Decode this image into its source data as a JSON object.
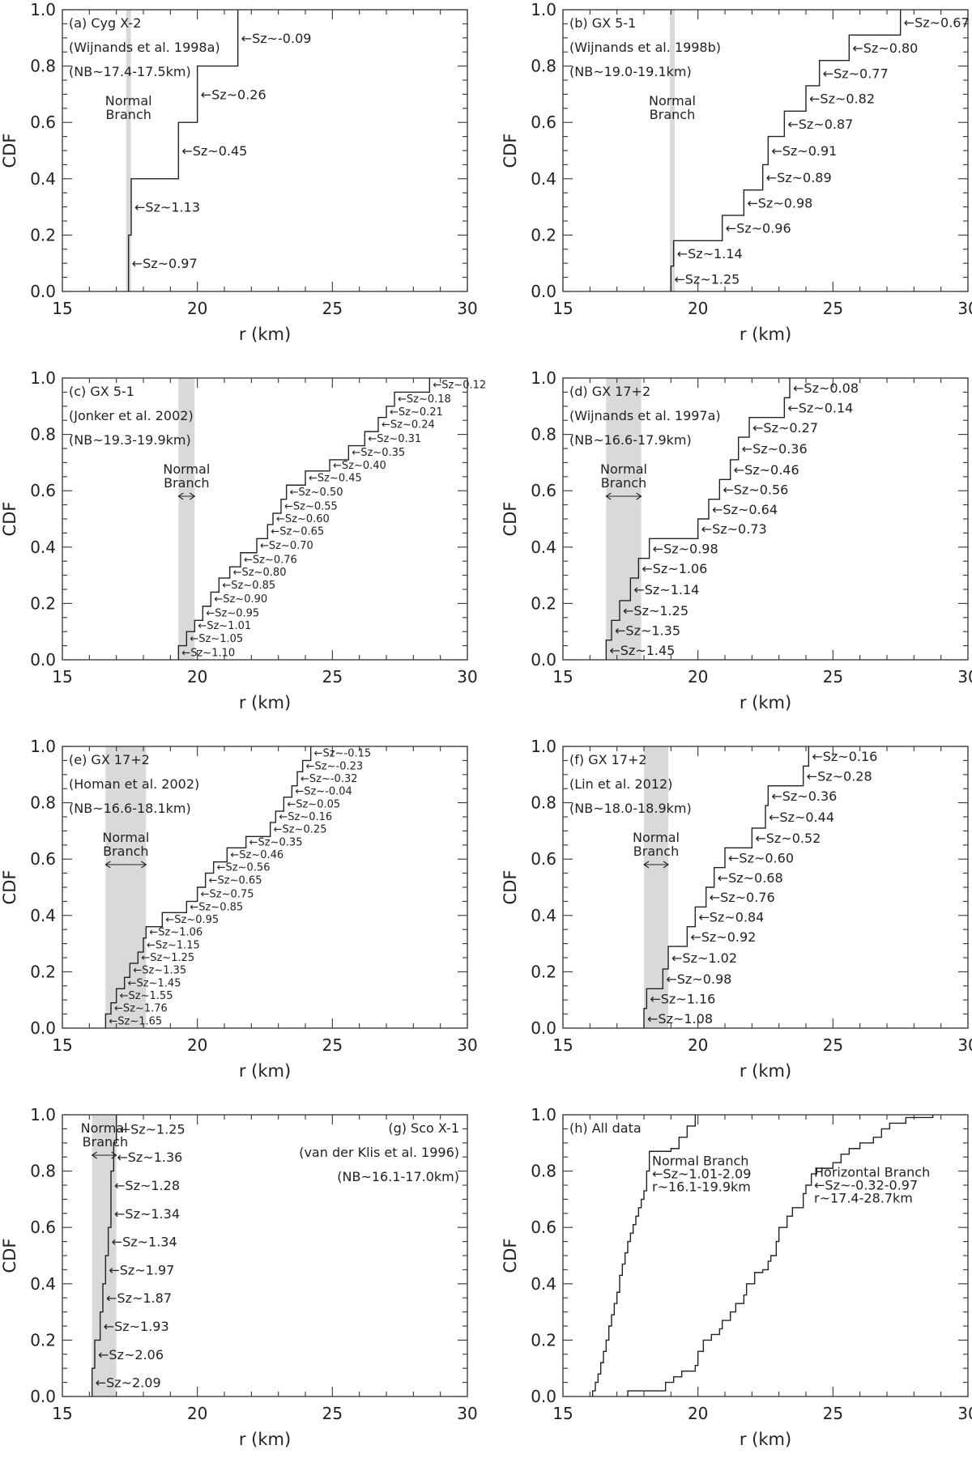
{
  "chart_data": [
    {
      "id": "a",
      "type": "line",
      "title": "(a) Cyg X-2",
      "reference": "(Wijnands et al. 1998a)",
      "nb_range_label": "(NB~17.4-17.5km)",
      "band_label": [
        "Normal",
        "Branch"
      ],
      "band": [
        17.4,
        17.5
      ],
      "band_arrow": false,
      "xlabel": "r (km)",
      "ylabel": "CDF",
      "xlim": [
        15,
        30
      ],
      "ylim": [
        0,
        1
      ],
      "xticks": [
        15,
        20,
        25,
        30
      ],
      "yticks": [
        "0.0",
        "0.2",
        "0.4",
        "0.6",
        "0.8",
        "1.0"
      ],
      "steps": [
        {
          "r": 17.45,
          "cdf": 0.2,
          "sz": "Sz~0.97"
        },
        {
          "r": 17.55,
          "cdf": 0.4,
          "sz": "Sz~1.13"
        },
        {
          "r": 19.3,
          "cdf": 0.6,
          "sz": "Sz~0.45"
        },
        {
          "r": 20.0,
          "cdf": 0.8,
          "sz": "Sz~0.26"
        },
        {
          "r": 21.5,
          "cdf": 1.0,
          "sz": "Sz~-0.09"
        }
      ]
    },
    {
      "id": "b",
      "type": "line",
      "title": "(b) GX 5-1",
      "reference": "(Wijnands et al. 1998b)",
      "nb_range_label": "(NB~19.0-19.1km)",
      "band_label": [
        "Normal",
        "Branch"
      ],
      "band": [
        19.0,
        19.1
      ],
      "band_arrow": false,
      "xlabel": "r (km)",
      "ylabel": "CDF",
      "xlim": [
        15,
        30
      ],
      "ylim": [
        0,
        1
      ],
      "xticks": [
        15,
        20,
        25,
        30
      ],
      "yticks": [
        "0.0",
        "0.2",
        "0.4",
        "0.6",
        "0.8",
        "1.0"
      ],
      "steps": [
        {
          "r": 19.0,
          "cdf": 0.09,
          "sz": "Sz~1.25"
        },
        {
          "r": 19.1,
          "cdf": 0.18,
          "sz": "Sz~1.14"
        },
        {
          "r": 20.9,
          "cdf": 0.27,
          "sz": "Sz~0.96"
        },
        {
          "r": 21.7,
          "cdf": 0.36,
          "sz": "Sz~0.98"
        },
        {
          "r": 22.4,
          "cdf": 0.45,
          "sz": "Sz~0.89"
        },
        {
          "r": 22.6,
          "cdf": 0.55,
          "sz": "Sz~0.91"
        },
        {
          "r": 23.2,
          "cdf": 0.64,
          "sz": "Sz~0.87"
        },
        {
          "r": 24.0,
          "cdf": 0.73,
          "sz": "Sz~0.82"
        },
        {
          "r": 24.5,
          "cdf": 0.82,
          "sz": "Sz~0.77"
        },
        {
          "r": 25.6,
          "cdf": 0.91,
          "sz": "Sz~0.80"
        },
        {
          "r": 27.5,
          "cdf": 1.0,
          "sz": "Sz~0.67"
        }
      ]
    },
    {
      "id": "c",
      "type": "line",
      "title": "(c) GX 5-1",
      "reference": "(Jonker et al. 2002)",
      "nb_range_label": "(NB~19.3-19.9km)",
      "band_label": [
        "Normal",
        "Branch"
      ],
      "band": [
        19.3,
        19.9
      ],
      "band_arrow": true,
      "xlabel": "r (km)",
      "ylabel": "CDF",
      "xlim": [
        15,
        30
      ],
      "ylim": [
        0,
        1
      ],
      "xticks": [
        15,
        20,
        25,
        30
      ],
      "yticks": [
        "0.0",
        "0.2",
        "0.4",
        "0.6",
        "0.8",
        "1.0"
      ],
      "small_labels": true,
      "steps": [
        {
          "r": 19.3,
          "cdf": 0.05,
          "sz": "Sz~1.10"
        },
        {
          "r": 19.6,
          "cdf": 0.1,
          "sz": "Sz~1.05"
        },
        {
          "r": 19.9,
          "cdf": 0.14,
          "sz": "Sz~1.01"
        },
        {
          "r": 20.2,
          "cdf": 0.19,
          "sz": "Sz~0.95"
        },
        {
          "r": 20.5,
          "cdf": 0.24,
          "sz": "Sz~0.90"
        },
        {
          "r": 20.8,
          "cdf": 0.29,
          "sz": "Sz~0.85"
        },
        {
          "r": 21.2,
          "cdf": 0.33,
          "sz": "Sz~0.80"
        },
        {
          "r": 21.6,
          "cdf": 0.38,
          "sz": "Sz~0.76"
        },
        {
          "r": 22.2,
          "cdf": 0.43,
          "sz": "Sz~0.70"
        },
        {
          "r": 22.6,
          "cdf": 0.48,
          "sz": "Sz~0.65"
        },
        {
          "r": 22.8,
          "cdf": 0.52,
          "sz": "Sz~0.60"
        },
        {
          "r": 23.1,
          "cdf": 0.57,
          "sz": "Sz~0.55"
        },
        {
          "r": 23.3,
          "cdf": 0.62,
          "sz": "Sz~0.50"
        },
        {
          "r": 24.0,
          "cdf": 0.67,
          "sz": "Sz~0.45"
        },
        {
          "r": 24.9,
          "cdf": 0.71,
          "sz": "Sz~0.40"
        },
        {
          "r": 25.6,
          "cdf": 0.76,
          "sz": "Sz~0.35"
        },
        {
          "r": 26.2,
          "cdf": 0.81,
          "sz": "Sz~0.31"
        },
        {
          "r": 26.7,
          "cdf": 0.86,
          "sz": "Sz~0.24"
        },
        {
          "r": 27.0,
          "cdf": 0.9,
          "sz": "Sz~0.21"
        },
        {
          "r": 27.3,
          "cdf": 0.95,
          "sz": "Sz~0.18"
        },
        {
          "r": 28.6,
          "cdf": 1.0,
          "sz": "Sz~0.12"
        }
      ]
    },
    {
      "id": "d",
      "type": "line",
      "title": "(d) GX 17+2",
      "reference": "(Wijnands et al. 1997a)",
      "nb_range_label": "(NB~16.6-17.9km)",
      "band_label": [
        "Normal",
        "Branch"
      ],
      "band": [
        16.6,
        17.9
      ],
      "band_arrow": true,
      "xlabel": "r (km)",
      "ylabel": "CDF",
      "xlim": [
        15,
        30
      ],
      "ylim": [
        0,
        1
      ],
      "xticks": [
        15,
        20,
        25,
        30
      ],
      "yticks": [
        "0.0",
        "0.2",
        "0.4",
        "0.6",
        "0.8",
        "1.0"
      ],
      "steps": [
        {
          "r": 16.6,
          "cdf": 0.07,
          "sz": "Sz~1.45"
        },
        {
          "r": 16.8,
          "cdf": 0.14,
          "sz": "Sz~1.35"
        },
        {
          "r": 17.1,
          "cdf": 0.21,
          "sz": "Sz~1.25"
        },
        {
          "r": 17.5,
          "cdf": 0.29,
          "sz": "Sz~1.14"
        },
        {
          "r": 17.8,
          "cdf": 0.36,
          "sz": "Sz~1.06"
        },
        {
          "r": 18.2,
          "cdf": 0.43,
          "sz": "Sz~0.98"
        },
        {
          "r": 20.0,
          "cdf": 0.5,
          "sz": "Sz~0.73"
        },
        {
          "r": 20.4,
          "cdf": 0.57,
          "sz": "Sz~0.64"
        },
        {
          "r": 20.8,
          "cdf": 0.64,
          "sz": "Sz~0.56"
        },
        {
          "r": 21.2,
          "cdf": 0.71,
          "sz": "Sz~0.46"
        },
        {
          "r": 21.5,
          "cdf": 0.79,
          "sz": "Sz~0.36"
        },
        {
          "r": 21.9,
          "cdf": 0.86,
          "sz": "Sz~0.27"
        },
        {
          "r": 23.2,
          "cdf": 0.93,
          "sz": "Sz~0.14"
        },
        {
          "r": 23.4,
          "cdf": 1.0,
          "sz": "Sz~0.08"
        }
      ]
    },
    {
      "id": "e",
      "type": "line",
      "title": "(e) GX 17+2",
      "reference": "(Homan et al. 2002)",
      "nb_range_label": "(NB~16.6-18.1km)",
      "band_label": [
        "Normal",
        "Branch"
      ],
      "band": [
        16.6,
        18.1
      ],
      "band_arrow": true,
      "xlabel": "r (km)",
      "ylabel": "CDF",
      "xlim": [
        15,
        30
      ],
      "ylim": [
        0,
        1
      ],
      "xticks": [
        15,
        20,
        25,
        30
      ],
      "yticks": [
        "0.0",
        "0.2",
        "0.4",
        "0.6",
        "0.8",
        "1.0"
      ],
      "small_labels": true,
      "steps": [
        {
          "r": 16.6,
          "cdf": 0.05,
          "sz": "Sz~1.65"
        },
        {
          "r": 16.8,
          "cdf": 0.09,
          "sz": "Sz~1.76"
        },
        {
          "r": 17.0,
          "cdf": 0.14,
          "sz": "Sz~1.55"
        },
        {
          "r": 17.3,
          "cdf": 0.18,
          "sz": "Sz~1.45"
        },
        {
          "r": 17.5,
          "cdf": 0.23,
          "sz": "Sz~1.35"
        },
        {
          "r": 17.8,
          "cdf": 0.27,
          "sz": "Sz~1.25"
        },
        {
          "r": 18.0,
          "cdf": 0.32,
          "sz": "Sz~1.15"
        },
        {
          "r": 18.1,
          "cdf": 0.36,
          "sz": "Sz~1.06"
        },
        {
          "r": 18.7,
          "cdf": 0.41,
          "sz": "Sz~0.95"
        },
        {
          "r": 19.6,
          "cdf": 0.45,
          "sz": "Sz~0.85"
        },
        {
          "r": 20.0,
          "cdf": 0.5,
          "sz": "Sz~0.75"
        },
        {
          "r": 20.3,
          "cdf": 0.55,
          "sz": "Sz~0.65"
        },
        {
          "r": 20.6,
          "cdf": 0.59,
          "sz": "Sz~0.56"
        },
        {
          "r": 21.1,
          "cdf": 0.64,
          "sz": "Sz~0.46"
        },
        {
          "r": 21.8,
          "cdf": 0.68,
          "sz": "Sz~0.35"
        },
        {
          "r": 22.7,
          "cdf": 0.73,
          "sz": "Sz~0.25"
        },
        {
          "r": 22.9,
          "cdf": 0.77,
          "sz": "Sz~0.16"
        },
        {
          "r": 23.2,
          "cdf": 0.82,
          "sz": "Sz~0.05"
        },
        {
          "r": 23.5,
          "cdf": 0.86,
          "sz": "Sz~-0.04"
        },
        {
          "r": 23.7,
          "cdf": 0.91,
          "sz": "Sz~-0.32"
        },
        {
          "r": 23.9,
          "cdf": 0.95,
          "sz": "Sz~-0.23"
        },
        {
          "r": 24.2,
          "cdf": 1.0,
          "sz": "Sz~-0.15"
        }
      ]
    },
    {
      "id": "f",
      "type": "line",
      "title": "(f) GX 17+2",
      "reference": "(Lin et al. 2012)",
      "nb_range_label": "(NB~18.0-18.9km)",
      "band_label": [
        "Normal",
        "Branch"
      ],
      "band": [
        18.0,
        18.9
      ],
      "band_arrow": true,
      "xlabel": "r (km)",
      "ylabel": "CDF",
      "xlim": [
        15,
        30
      ],
      "ylim": [
        0,
        1
      ],
      "xticks": [
        15,
        20,
        25,
        30
      ],
      "yticks": [
        "0.0",
        "0.2",
        "0.4",
        "0.6",
        "0.8",
        "1.0"
      ],
      "steps": [
        {
          "r": 18.0,
          "cdf": 0.07,
          "sz": "Sz~1.08"
        },
        {
          "r": 18.1,
          "cdf": 0.14,
          "sz": "Sz~1.16"
        },
        {
          "r": 18.7,
          "cdf": 0.21,
          "sz": "Sz~0.98"
        },
        {
          "r": 18.9,
          "cdf": 0.29,
          "sz": "Sz~1.02"
        },
        {
          "r": 19.6,
          "cdf": 0.36,
          "sz": "Sz~0.92"
        },
        {
          "r": 19.9,
          "cdf": 0.43,
          "sz": "Sz~0.84"
        },
        {
          "r": 20.3,
          "cdf": 0.5,
          "sz": "Sz~0.76"
        },
        {
          "r": 20.6,
          "cdf": 0.57,
          "sz": "Sz~0.68"
        },
        {
          "r": 21.0,
          "cdf": 0.64,
          "sz": "Sz~0.60"
        },
        {
          "r": 22.0,
          "cdf": 0.71,
          "sz": "Sz~0.52"
        },
        {
          "r": 22.5,
          "cdf": 0.79,
          "sz": "Sz~0.44"
        },
        {
          "r": 22.6,
          "cdf": 0.86,
          "sz": "Sz~0.36"
        },
        {
          "r": 23.9,
          "cdf": 0.93,
          "sz": "Sz~0.28"
        },
        {
          "r": 24.1,
          "cdf": 1.0,
          "sz": "Sz~0.16"
        }
      ]
    },
    {
      "id": "g",
      "type": "line",
      "title": "(g) Sco X-1",
      "reference": "(van der Klis et al. 1996)",
      "nb_range_label": "(NB~16.1-17.0km)",
      "band_label": [
        "Normal",
        "Branch"
      ],
      "band": [
        16.1,
        17.0
      ],
      "band_arrow": true,
      "text_align": "right",
      "xlabel": "r (km)",
      "ylabel": "CDF",
      "xlim": [
        15,
        30
      ],
      "ylim": [
        0,
        1
      ],
      "xticks": [
        15,
        20,
        25,
        30
      ],
      "yticks": [
        "0.0",
        "0.2",
        "0.4",
        "0.6",
        "0.8",
        "1.0"
      ],
      "steps": [
        {
          "r": 16.1,
          "cdf": 0.1,
          "sz": "Sz~2.09"
        },
        {
          "r": 16.2,
          "cdf": 0.2,
          "sz": "Sz~2.06"
        },
        {
          "r": 16.4,
          "cdf": 0.3,
          "sz": "Sz~1.93"
        },
        {
          "r": 16.5,
          "cdf": 0.4,
          "sz": "Sz~1.87"
        },
        {
          "r": 16.6,
          "cdf": 0.5,
          "sz": "Sz~1.97"
        },
        {
          "r": 16.7,
          "cdf": 0.6,
          "sz": "Sz~1.34"
        },
        {
          "r": 16.8,
          "cdf": 0.7,
          "sz": "Sz~1.34"
        },
        {
          "r": 16.8,
          "cdf": 0.8,
          "sz": "Sz~1.28"
        },
        {
          "r": 16.9,
          "cdf": 0.9,
          "sz": "Sz~1.36"
        },
        {
          "r": 17.0,
          "cdf": 1.0,
          "sz": "Sz~1.25"
        }
      ]
    },
    {
      "id": "h",
      "type": "line",
      "title": "(h) All data",
      "xlabel": "r (km)",
      "ylabel": "CDF",
      "xlim": [
        15,
        30
      ],
      "ylim": [
        0,
        1
      ],
      "xticks": [
        15,
        20,
        25,
        30
      ],
      "yticks": [
        "0.0",
        "0.2",
        "0.4",
        "0.6",
        "0.8",
        "1.0"
      ],
      "series": [
        {
          "name": "Normal Branch",
          "label_lines": [
            "Normal Branch",
            "Sz~1.01-2.09",
            "r~16.1-19.9km"
          ],
          "points": [
            [
              16.1,
              0.02
            ],
            [
              16.2,
              0.05
            ],
            [
              16.3,
              0.08
            ],
            [
              16.4,
              0.12
            ],
            [
              16.5,
              0.16
            ],
            [
              16.6,
              0.2
            ],
            [
              16.7,
              0.25
            ],
            [
              16.8,
              0.29
            ],
            [
              16.9,
              0.33
            ],
            [
              17.0,
              0.37
            ],
            [
              17.1,
              0.43
            ],
            [
              17.2,
              0.47
            ],
            [
              17.3,
              0.51
            ],
            [
              17.4,
              0.55
            ],
            [
              17.5,
              0.58
            ],
            [
              17.6,
              0.61
            ],
            [
              17.7,
              0.64
            ],
            [
              17.8,
              0.67
            ],
            [
              17.9,
              0.7
            ],
            [
              18.0,
              0.73
            ],
            [
              18.1,
              0.8
            ],
            [
              18.2,
              0.87
            ],
            [
              19.0,
              0.88
            ],
            [
              19.3,
              0.92
            ],
            [
              19.6,
              0.96
            ],
            [
              19.9,
              1.0
            ]
          ]
        },
        {
          "name": "Horizontal Branch",
          "label_lines": [
            "Horizontal Branch",
            "Sz~-0.32-0.97",
            "r~17.4-28.7km"
          ],
          "points": [
            [
              17.4,
              0.02
            ],
            [
              18.8,
              0.05
            ],
            [
              19.1,
              0.07
            ],
            [
              19.4,
              0.09
            ],
            [
              19.9,
              0.11
            ],
            [
              20.0,
              0.13
            ],
            [
              20.0,
              0.16
            ],
            [
              20.2,
              0.2
            ],
            [
              20.5,
              0.22
            ],
            [
              20.8,
              0.24
            ],
            [
              20.9,
              0.27
            ],
            [
              21.2,
              0.3
            ],
            [
              21.4,
              0.33
            ],
            [
              21.7,
              0.36
            ],
            [
              21.8,
              0.4
            ],
            [
              22.1,
              0.44
            ],
            [
              22.4,
              0.45
            ],
            [
              22.6,
              0.48
            ],
            [
              22.7,
              0.5
            ],
            [
              22.9,
              0.55
            ],
            [
              23.0,
              0.6
            ],
            [
              23.3,
              0.64
            ],
            [
              23.5,
              0.67
            ],
            [
              23.9,
              0.72
            ],
            [
              24.0,
              0.75
            ],
            [
              24.2,
              0.79
            ],
            [
              24.4,
              0.81
            ],
            [
              25.0,
              0.83
            ],
            [
              25.3,
              0.86
            ],
            [
              25.6,
              0.88
            ],
            [
              26.0,
              0.9
            ],
            [
              26.5,
              0.92
            ],
            [
              26.8,
              0.95
            ],
            [
              27.1,
              0.97
            ],
            [
              27.7,
              0.99
            ],
            [
              28.7,
              1.0
            ]
          ]
        }
      ]
    }
  ]
}
